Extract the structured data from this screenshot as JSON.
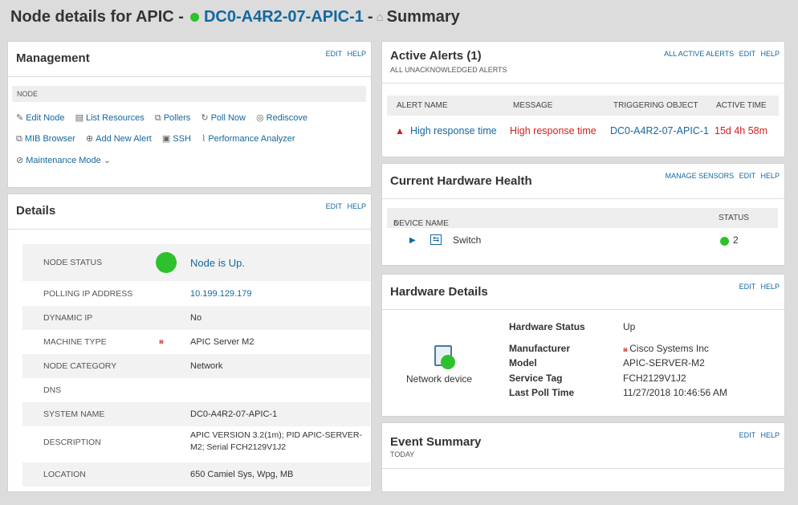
{
  "header": {
    "prefix": "Node details for APIC -",
    "node_name": "DC0-A4R2-07-APIC-1",
    "separator": "-",
    "home_icon": "home-icon",
    "view": "Summary"
  },
  "management": {
    "title": "Management",
    "edit": "EDIT",
    "help": "HELP",
    "section_label": "NODE",
    "actions_row1": [
      {
        "icon": "pencil-icon",
        "label": "Edit Node"
      },
      {
        "icon": "document-icon",
        "label": "List Resources"
      },
      {
        "icon": "pollers-icon",
        "label": "Pollers"
      },
      {
        "icon": "refresh-icon",
        "label": "Poll Now"
      },
      {
        "icon": "rediscover-icon",
        "label": "Rediscove"
      }
    ],
    "actions_row2": [
      {
        "icon": "mib-icon",
        "label": "MIB Browser"
      },
      {
        "icon": "plus-circle-icon",
        "label": "Add New Alert"
      },
      {
        "icon": "ssh-icon",
        "label": "SSH"
      },
      {
        "icon": "performance-icon",
        "label": "Performance Analyzer"
      }
    ],
    "actions_row3": [
      {
        "icon": "maintenance-icon",
        "label": "Maintenance Mode"
      }
    ]
  },
  "details": {
    "title": "Details",
    "edit": "EDIT",
    "help": "HELP",
    "rows": [
      {
        "label": "NODE STATUS",
        "value": "Node is Up."
      },
      {
        "label": "POLLING IP ADDRESS",
        "value": "10.199.129.179"
      },
      {
        "label": "DYNAMIC IP",
        "value": "No"
      },
      {
        "label": "MACHINE TYPE",
        "value": "APIC Server M2"
      },
      {
        "label": "NODE CATEGORY",
        "value": "Network"
      },
      {
        "label": "DNS",
        "value": ""
      },
      {
        "label": "SYSTEM NAME",
        "value": "DC0-A4R2-07-APIC-1"
      },
      {
        "label": "DESCRIPTION",
        "value": "APIC VERSION 3.2(1m); PID APIC-SERVER-",
        "value2": "M2; Serial FCH2129V1J2"
      },
      {
        "label": "LOCATION",
        "value": "650 Camiel Sys, Wpg, MB"
      }
    ]
  },
  "alerts": {
    "title": "Active Alerts (1)",
    "subtitle": "ALL UNACKNOWLEDGED ALERTS",
    "all_active": "ALL ACTIVE ALERTS",
    "edit": "EDIT",
    "help": "HELP",
    "columns": [
      "ALERT NAME",
      "MESSAGE",
      "TRIGGERING OBJECT",
      "ACTIVE TIME"
    ],
    "rows": [
      {
        "name": "High response time",
        "message": "High response time",
        "object": "DC0-A4R2-07-APIC-1",
        "time": "15d 4h 58m"
      }
    ]
  },
  "hardware_health": {
    "title": "Current Hardware Health",
    "manage": "MANAGE SENSORS",
    "edit": "EDIT",
    "help": "HELP",
    "col_device": "DEVICE NAME",
    "sort_icon": "sort-up-icon",
    "col_status": "STATUS",
    "device": "Switch",
    "count": "2"
  },
  "hardware_details": {
    "title": "Hardware Details",
    "edit": "EDIT",
    "help": "HELP",
    "device_caption": "Network device",
    "fields": [
      {
        "label": "Hardware Status",
        "value": "Up"
      },
      {
        "label": "Manufacturer",
        "value": "Cisco Systems Inc"
      },
      {
        "label": "Model",
        "value": "APIC-SERVER-M2"
      },
      {
        "label": "Service Tag",
        "value": "FCH2129V1J2"
      },
      {
        "label": "Last Poll Time",
        "value": "11/27/2018 10:46:56 AM"
      }
    ]
  },
  "event_summary": {
    "title": "Event Summary",
    "subtitle": "TODAY",
    "edit": "EDIT",
    "help": "HELP"
  },
  "colors": {
    "accent": "#14689e",
    "up": "#2ec12e",
    "alert": "#d21e1e"
  }
}
